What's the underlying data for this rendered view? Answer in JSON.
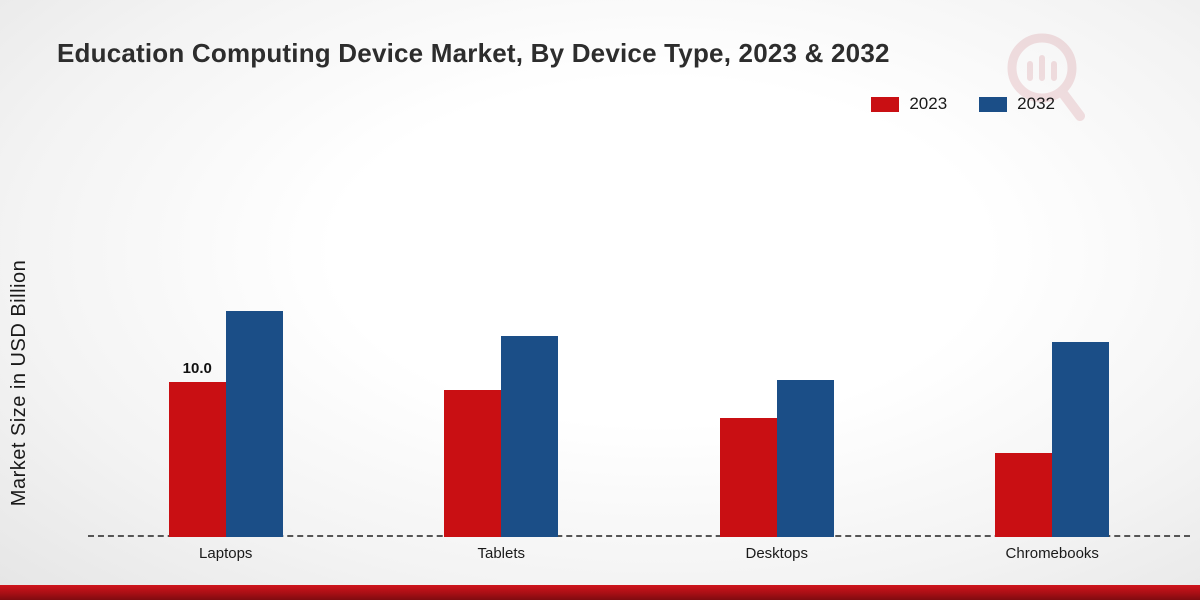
{
  "title": "Education Computing Device Market, By Device Type, 2023 & 2032",
  "y_axis_label": "Market Size in USD Billion",
  "legend": [
    {
      "label": "2023",
      "color": "#c90f13"
    },
    {
      "label": "2032",
      "color": "#1b4e87"
    }
  ],
  "colors": {
    "series_2023": "#c90f13",
    "series_2032": "#1b4e87",
    "footer_accent": "#a80f15",
    "baseline": "#555555"
  },
  "chart_data": {
    "type": "bar",
    "title": "Education Computing Device Market, By Device Type, 2023 & 2032",
    "categories": [
      "Laptops",
      "Tablets",
      "Desktops",
      "Chromebooks"
    ],
    "series": [
      {
        "name": "2023",
        "color": "#c90f13",
        "values": [
          10.0,
          9.5,
          7.7,
          5.4
        ],
        "labels": [
          "10.0",
          null,
          null,
          null
        ]
      },
      {
        "name": "2032",
        "color": "#1b4e87",
        "values": [
          14.6,
          13.0,
          10.1,
          12.6
        ],
        "labels": [
          null,
          null,
          null,
          null
        ]
      }
    ],
    "xlabel": "",
    "ylabel": "Market Size in USD Billion",
    "ylim": [
      0,
      16
    ],
    "grid": false,
    "legend_position": "top-right",
    "baseline_style": "dashed",
    "data_label_note": "only Laptops 2023 bar is labeled with its value 10.0"
  }
}
